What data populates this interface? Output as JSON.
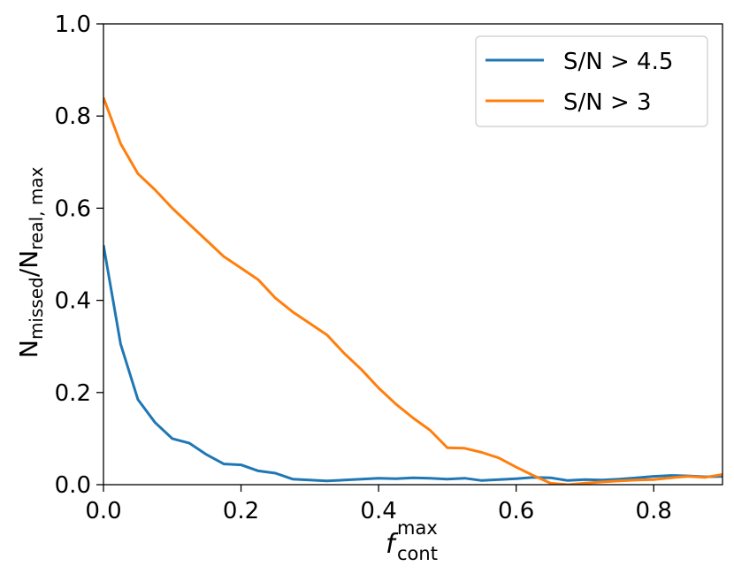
{
  "chart_data": {
    "type": "line",
    "title": "",
    "xlabel": {
      "main": "f",
      "sup": "max",
      "sub": "cont"
    },
    "ylabel": {
      "n1": "N",
      "s1": "missed",
      "mid": "/N",
      "s2": "real, max"
    },
    "xlim": [
      0,
      0.9
    ],
    "ylim": [
      0,
      1.0
    ],
    "xticks": [
      0.0,
      0.2,
      0.4,
      0.6,
      0.8
    ],
    "xtick_labels": [
      "0.0",
      "0.2",
      "0.4",
      "0.6",
      "0.8"
    ],
    "yticks": [
      0.0,
      0.2,
      0.4,
      0.6,
      0.8,
      1.0
    ],
    "ytick_labels": [
      "0.0",
      "0.2",
      "0.4",
      "0.6",
      "0.8",
      "1.0"
    ],
    "grid": false,
    "legend": {
      "position": "top-right"
    },
    "series": [
      {
        "name": "S/N > 4.5",
        "color": "#1f77b4",
        "x": [
          0,
          0.025,
          0.05,
          0.075,
          0.1,
          0.125,
          0.15,
          0.175,
          0.2,
          0.225,
          0.25,
          0.275,
          0.3,
          0.325,
          0.35,
          0.375,
          0.4,
          0.425,
          0.45,
          0.475,
          0.5,
          0.525,
          0.55,
          0.575,
          0.6,
          0.625,
          0.65,
          0.675,
          0.7,
          0.725,
          0.75,
          0.775,
          0.8,
          0.825,
          0.85,
          0.875,
          0.9
        ],
        "y": [
          0.52,
          0.305,
          0.185,
          0.135,
          0.1,
          0.09,
          0.065,
          0.045,
          0.043,
          0.03,
          0.025,
          0.012,
          0.01,
          0.008,
          0.01,
          0.012,
          0.014,
          0.013,
          0.015,
          0.014,
          0.012,
          0.014,
          0.009,
          0.011,
          0.013,
          0.016,
          0.015,
          0.009,
          0.011,
          0.01,
          0.012,
          0.015,
          0.018,
          0.02,
          0.019,
          0.017,
          0.018
        ]
      },
      {
        "name": "S/N > 3",
        "color": "#ff7f0e",
        "x": [
          0,
          0.025,
          0.05,
          0.075,
          0.1,
          0.125,
          0.15,
          0.175,
          0.2,
          0.225,
          0.25,
          0.275,
          0.3,
          0.325,
          0.35,
          0.375,
          0.4,
          0.425,
          0.45,
          0.475,
          0.5,
          0.525,
          0.55,
          0.575,
          0.6,
          0.625,
          0.65,
          0.675,
          0.7,
          0.725,
          0.75,
          0.775,
          0.8,
          0.825,
          0.85,
          0.875,
          0.9
        ],
        "y": [
          0.84,
          0.74,
          0.675,
          0.64,
          0.6,
          0.565,
          0.53,
          0.495,
          0.47,
          0.445,
          0.405,
          0.375,
          0.35,
          0.325,
          0.285,
          0.25,
          0.21,
          0.175,
          0.145,
          0.118,
          0.08,
          0.079,
          0.07,
          0.058,
          0.038,
          0.02,
          0.003,
          0.0,
          0.003,
          0.006,
          0.008,
          0.01,
          0.011,
          0.015,
          0.018,
          0.016,
          0.022
        ]
      }
    ]
  }
}
